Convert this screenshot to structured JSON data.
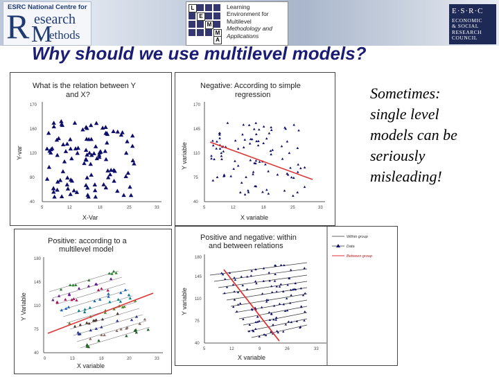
{
  "header": {
    "rm_logo": {
      "line1": "ESRC National Centre for",
      "word1": "esearch",
      "word2": "ethods"
    },
    "lemma": {
      "lines": [
        "Learning",
        "Environment for",
        "Multilevel"
      ],
      "italic_lines": [
        "Methodology and",
        "Applications"
      ],
      "letters": [
        "L",
        "E",
        "M",
        "M",
        "A"
      ]
    },
    "esrc": {
      "top": "E·S·R·C",
      "lines": [
        "ECONOMIC",
        "& SOCIAL",
        "RESEARCH",
        "COUNCIL"
      ]
    }
  },
  "title": "Why should we use multilevel models?",
  "side_text": [
    "Sometimes:",
    "single level",
    "models can be",
    "seriously",
    "misleading!"
  ],
  "panels": {
    "p1": {
      "title1": "What is the relation between Y",
      "title2": "and X?",
      "xlabel": "X-Var",
      "ylabel": "Y-var",
      "yticks": [
        "40",
        "80",
        "120",
        "160",
        "170"
      ],
      "xticks": [
        "5",
        "12",
        "18",
        "25",
        "33"
      ]
    },
    "p2": {
      "title1": "Negative: According to simple",
      "title2": "regression",
      "xlabel": "X variable",
      "ylabel": "Y variable",
      "yticks": [
        "40",
        "75",
        "110",
        "145",
        "170"
      ],
      "xticks": [
        "5",
        "12",
        "18",
        "25",
        "33"
      ]
    },
    "p3": {
      "title1": "Positive: according to a",
      "title2": "multilevel model",
      "xlabel": "X variable",
      "ylabel": "Y Variable",
      "yticks": [
        "40",
        "75",
        "110",
        "145",
        "180"
      ],
      "xticks": [
        "0",
        "13",
        "18",
        "20",
        "33"
      ]
    },
    "p4": {
      "title1": "Positive and negative: within",
      "title2": "and between relations",
      "xlabel": "X variable",
      "ylabel": "Y variable",
      "yticks": [
        "40",
        "75",
        "110",
        "145",
        "180"
      ],
      "xticks": [
        "5",
        "12",
        "9",
        "26",
        "33"
      ],
      "legend": [
        "Within group",
        "Data",
        "Between group"
      ]
    }
  },
  "colors": {
    "title": "#1a1d73",
    "points": "#0d0d6b",
    "regression": "#e03030"
  }
}
